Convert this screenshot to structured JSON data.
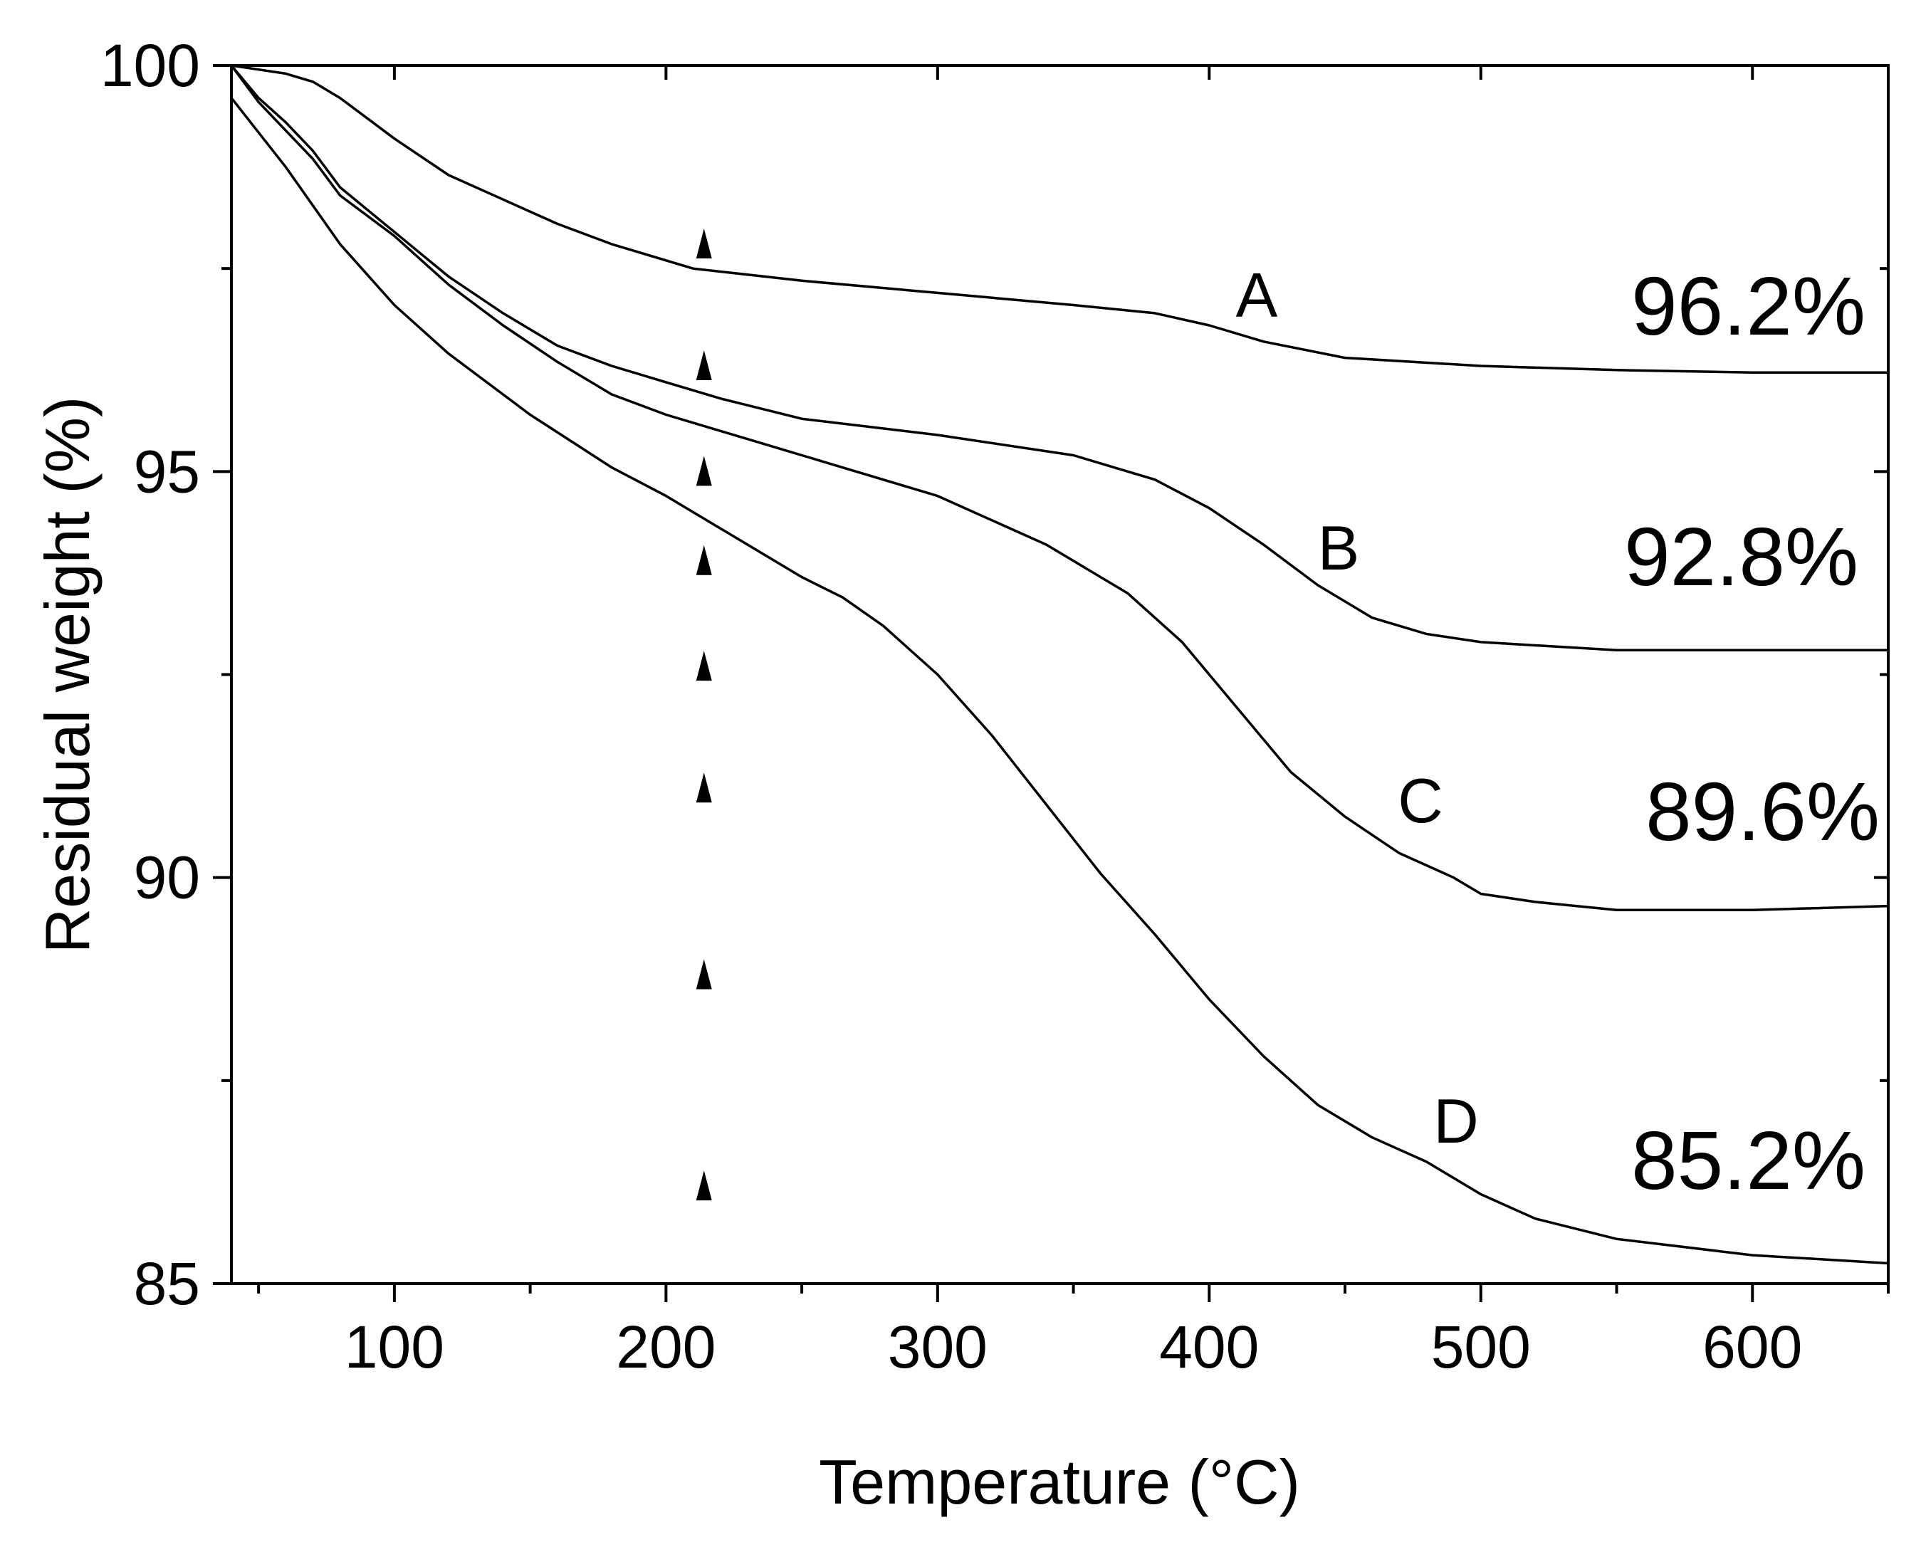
{
  "chart_data": {
    "type": "line",
    "title": "",
    "xlabel": "Temperature (°C)",
    "ylabel": "Residual weight (%)",
    "xlim": [
      40,
      650
    ],
    "ylim": [
      85,
      100
    ],
    "x_major_ticks": [
      100,
      200,
      300,
      400,
      500,
      600
    ],
    "x_tick_labels": [
      "100",
      "200",
      "300",
      "400",
      "500",
      "600"
    ],
    "x_minor_ticks": [
      50,
      150,
      250,
      350,
      450,
      550,
      650
    ],
    "y_major_ticks": [
      85,
      90,
      95,
      100
    ],
    "y_tick_labels": [
      "85",
      "90",
      "95",
      "100"
    ],
    "y_minor_ticks": [
      87.5,
      92.5,
      97.5
    ],
    "grid": false,
    "series": [
      {
        "name": "A",
        "label": "A",
        "final_label": "96.2%",
        "x": [
          40,
          50,
          60,
          70,
          80,
          100,
          120,
          140,
          160,
          180,
          200,
          210,
          250,
          300,
          350,
          380,
          400,
          420,
          450,
          500,
          550,
          600,
          650
        ],
        "y": [
          100,
          99.95,
          99.9,
          99.8,
          99.6,
          99.1,
          98.65,
          98.35,
          98.05,
          97.8,
          97.6,
          97.5,
          97.35,
          97.2,
          97.05,
          96.95,
          96.8,
          96.6,
          96.4,
          96.3,
          96.25,
          96.22,
          96.22
        ]
      },
      {
        "name": "B",
        "label": "B",
        "final_label": "92.8%",
        "x": [
          40,
          50,
          60,
          70,
          80,
          100,
          120,
          140,
          160,
          180,
          200,
          220,
          250,
          300,
          350,
          380,
          400,
          420,
          440,
          460,
          480,
          500,
          550,
          600,
          650
        ],
        "y": [
          100,
          99.6,
          99.3,
          98.95,
          98.5,
          97.95,
          97.4,
          96.95,
          96.55,
          96.3,
          96.1,
          95.9,
          95.65,
          95.45,
          95.2,
          94.9,
          94.55,
          94.1,
          93.6,
          93.2,
          93.0,
          92.9,
          92.8,
          92.8,
          92.8
        ]
      },
      {
        "name": "C",
        "label": "C",
        "final_label": "89.6%",
        "x": [
          40,
          50,
          60,
          70,
          80,
          100,
          120,
          140,
          160,
          180,
          200,
          220,
          250,
          300,
          340,
          370,
          390,
          410,
          430,
          450,
          470,
          490,
          500,
          520,
          550,
          600,
          650
        ],
        "y": [
          100,
          99.55,
          99.2,
          98.85,
          98.4,
          97.9,
          97.3,
          96.8,
          96.35,
          95.95,
          95.7,
          95.5,
          95.2,
          94.7,
          94.1,
          93.5,
          92.9,
          92.1,
          91.3,
          90.75,
          90.3,
          90.0,
          89.8,
          89.7,
          89.6,
          89.6,
          89.65
        ]
      },
      {
        "name": "D",
        "label": "D",
        "final_label": "85.2%",
        "x": [
          40,
          60,
          80,
          100,
          120,
          150,
          180,
          200,
          220,
          250,
          265,
          280,
          300,
          320,
          340,
          360,
          380,
          400,
          420,
          440,
          460,
          480,
          500,
          520,
          550,
          600,
          650
        ],
        "y": [
          99.6,
          98.75,
          97.8,
          97.05,
          96.45,
          95.7,
          95.05,
          94.7,
          94.3,
          93.7,
          93.45,
          93.1,
          92.5,
          91.75,
          90.9,
          90.05,
          89.3,
          88.5,
          87.8,
          87.2,
          86.8,
          86.5,
          86.1,
          85.8,
          85.55,
          85.35,
          85.25
        ]
      }
    ],
    "annotations": {
      "arrow_column": {
        "x": 214,
        "y_values": [
          86.2,
          88.8,
          91.1,
          92.6,
          93.9,
          95.0,
          96.3,
          97.8
        ],
        "marker": "black-up-triangle",
        "description_note": "dashed line of up-pointing arrowheads"
      }
    }
  }
}
